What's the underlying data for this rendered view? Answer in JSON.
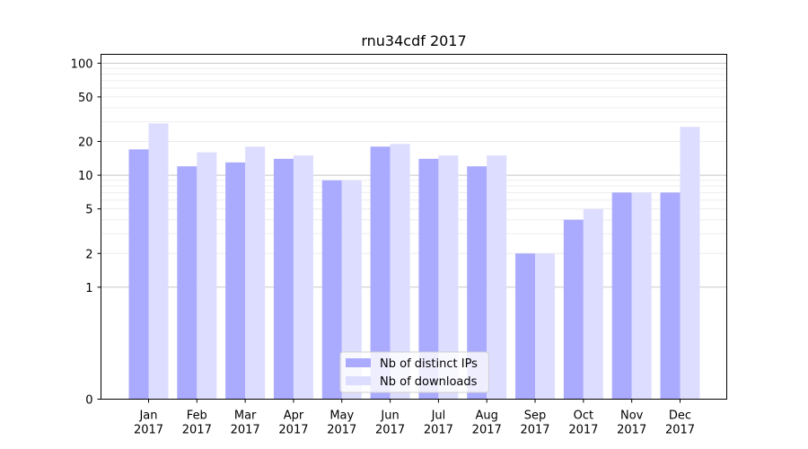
{
  "chart_data": {
    "type": "bar",
    "title": "rnu34cdf 2017",
    "xlabel": "",
    "ylabel": "",
    "y_scale": "symlog",
    "ylim": [
      0,
      120
    ],
    "y_ticks": [
      0,
      1,
      2,
      5,
      10,
      20,
      50,
      100
    ],
    "y_tick_labels": [
      "0",
      "1",
      "2",
      "5",
      "10",
      "20",
      "50",
      "100"
    ],
    "categories": [
      "Jan\n2017",
      "Feb\n2017",
      "Mar\n2017",
      "Apr\n2017",
      "May\n2017",
      "Jun\n2017",
      "Jul\n2017",
      "Aug\n2017",
      "Sep\n2017",
      "Oct\n2017",
      "Nov\n2017",
      "Dec\n2017"
    ],
    "series": [
      {
        "name": "Nb of distinct IPs",
        "color": "#aaaaff",
        "values": [
          17,
          12,
          13,
          14,
          9,
          18,
          14,
          12,
          2,
          4,
          7,
          7
        ]
      },
      {
        "name": "Nb of downloads",
        "color": "#ddddff",
        "values": [
          29,
          16,
          18,
          15,
          9,
          19,
          15,
          15,
          2,
          5,
          7,
          27
        ]
      }
    ],
    "legend_position": "lower-center",
    "grid": true
  }
}
